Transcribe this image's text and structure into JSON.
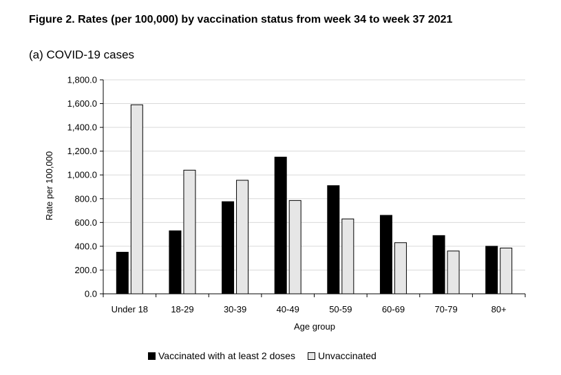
{
  "figure_title": "Figure 2. Rates (per 100,000) by vaccination status from week 34 to week 37 2021",
  "chart_data": {
    "type": "bar",
    "title": "(a) COVID-19 cases",
    "xlabel": "Age group",
    "ylabel": "Rate per 100,000",
    "ylim": [
      0,
      1800
    ],
    "yticks": [
      "0.0",
      "200.0",
      "400.0",
      "600.0",
      "800.0",
      "1,000.0",
      "1,200.0",
      "1,400.0",
      "1,600.0",
      "1,800.0"
    ],
    "categories": [
      "Under 18",
      "18-29",
      "30-39",
      "40-49",
      "50-59",
      "60-69",
      "70-79",
      "80+"
    ],
    "series": [
      {
        "name": "Vaccinated with at least 2 doses",
        "color": "#000000",
        "values": [
          350,
          530,
          775,
          1150,
          910,
          660,
          490,
          400
        ]
      },
      {
        "name": "Unvaccinated",
        "color": "#e6e6e6",
        "values": [
          1590,
          1040,
          955,
          785,
          630,
          430,
          360,
          385
        ]
      }
    ],
    "grid": true,
    "legend_position": "bottom"
  }
}
